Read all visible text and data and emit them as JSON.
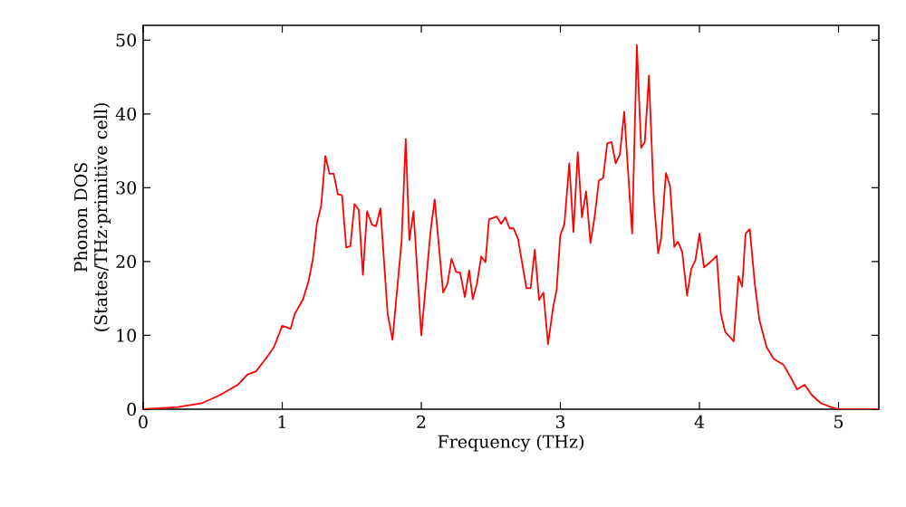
{
  "chart_data": {
    "type": "line",
    "xlabel": "Frequency (THz)",
    "ylabel": "Phonon DOS (States/THz·primitive cell)",
    "xlim": [
      0,
      5.29
    ],
    "ylim": [
      0,
      52
    ],
    "xticks": [
      0,
      1,
      2,
      3,
      4,
      5
    ],
    "yticks": [
      0,
      10,
      20,
      30,
      40,
      50
    ],
    "x": [
      0.0,
      0.25,
      0.42,
      0.55,
      0.68,
      0.75,
      0.81,
      0.88,
      0.94,
      1.0,
      1.06,
      1.09,
      1.15,
      1.19,
      1.22,
      1.25,
      1.28,
      1.31,
      1.34,
      1.37,
      1.4,
      1.43,
      1.46,
      1.49,
      1.52,
      1.55,
      1.58,
      1.61,
      1.645,
      1.675,
      1.706,
      1.758,
      1.793,
      1.858,
      1.888,
      1.914,
      1.944,
      2.0,
      2.066,
      2.096,
      2.157,
      2.188,
      2.218,
      2.249,
      2.279,
      2.313,
      2.344,
      2.37,
      2.4,
      2.431,
      2.461,
      2.487,
      2.543,
      2.574,
      2.604,
      2.635,
      2.664,
      2.695,
      2.756,
      2.786,
      2.816,
      2.847,
      2.878,
      2.911,
      2.947,
      2.973,
      2.999,
      3.029,
      3.064,
      3.094,
      3.125,
      3.155,
      3.185,
      3.216,
      3.246,
      3.277,
      3.307,
      3.337,
      3.368,
      3.398,
      3.428,
      3.459,
      3.516,
      3.55,
      3.581,
      3.607,
      3.637,
      3.672,
      3.703,
      3.724,
      3.759,
      3.789,
      3.819,
      3.845,
      3.876,
      3.911,
      3.941,
      3.971,
      4.001,
      4.033,
      4.094,
      4.124,
      4.154,
      4.185,
      4.246,
      4.281,
      4.307,
      4.332,
      4.362,
      4.398,
      4.431,
      4.483,
      4.535,
      4.605,
      4.657,
      4.701,
      4.757,
      4.809,
      4.874,
      4.961,
      5.0,
      5.29
    ],
    "series": [
      {
        "color": "#ff0000",
        "values": [
          0,
          0.3,
          0.8,
          1.9,
          3.3,
          4.7,
          5.1,
          6.8,
          8.4,
          11.3,
          10.9,
          12.9,
          14.9,
          17.4,
          20.3,
          25.2,
          27.6,
          34.3,
          31.9,
          31.9,
          29.1,
          29.0,
          21.9,
          22.1,
          27.8,
          27.0,
          18.2,
          26.8,
          25.0,
          24.8,
          27.2,
          12.9,
          9.4,
          22.7,
          36.6,
          22.9,
          26.8,
          10.0,
          24.0,
          28.4,
          15.8,
          17.0,
          20.4,
          18.6,
          18.5,
          15.2,
          18.8,
          14.9,
          17.0,
          20.7,
          19.9,
          25.7,
          26.1,
          25.1,
          26.0,
          24.5,
          24.5,
          23.1,
          16.4,
          16.4,
          21.6,
          14.8,
          15.8,
          8.8,
          13.7,
          16.2,
          23.5,
          25.1,
          33.3,
          24.0,
          34.8,
          26.0,
          29.5,
          22.5,
          26.0,
          31.0,
          31.3,
          36.0,
          36.2,
          33.3,
          34.5,
          40.3,
          23.8,
          49.3,
          35.4,
          36.2,
          45.2,
          28.4,
          21.1,
          23.1,
          32.0,
          30.2,
          22.0,
          22.7,
          21.3,
          15.4,
          19.0,
          20.2,
          23.8,
          19.2,
          20.2,
          20.8,
          12.9,
          10.5,
          9.2,
          18.0,
          16.6,
          23.8,
          24.4,
          17.0,
          12.1,
          8.4,
          6.8,
          6.0,
          4.3,
          2.7,
          3.3,
          1.9,
          0.8,
          0.2,
          0,
          0
        ]
      }
    ]
  }
}
